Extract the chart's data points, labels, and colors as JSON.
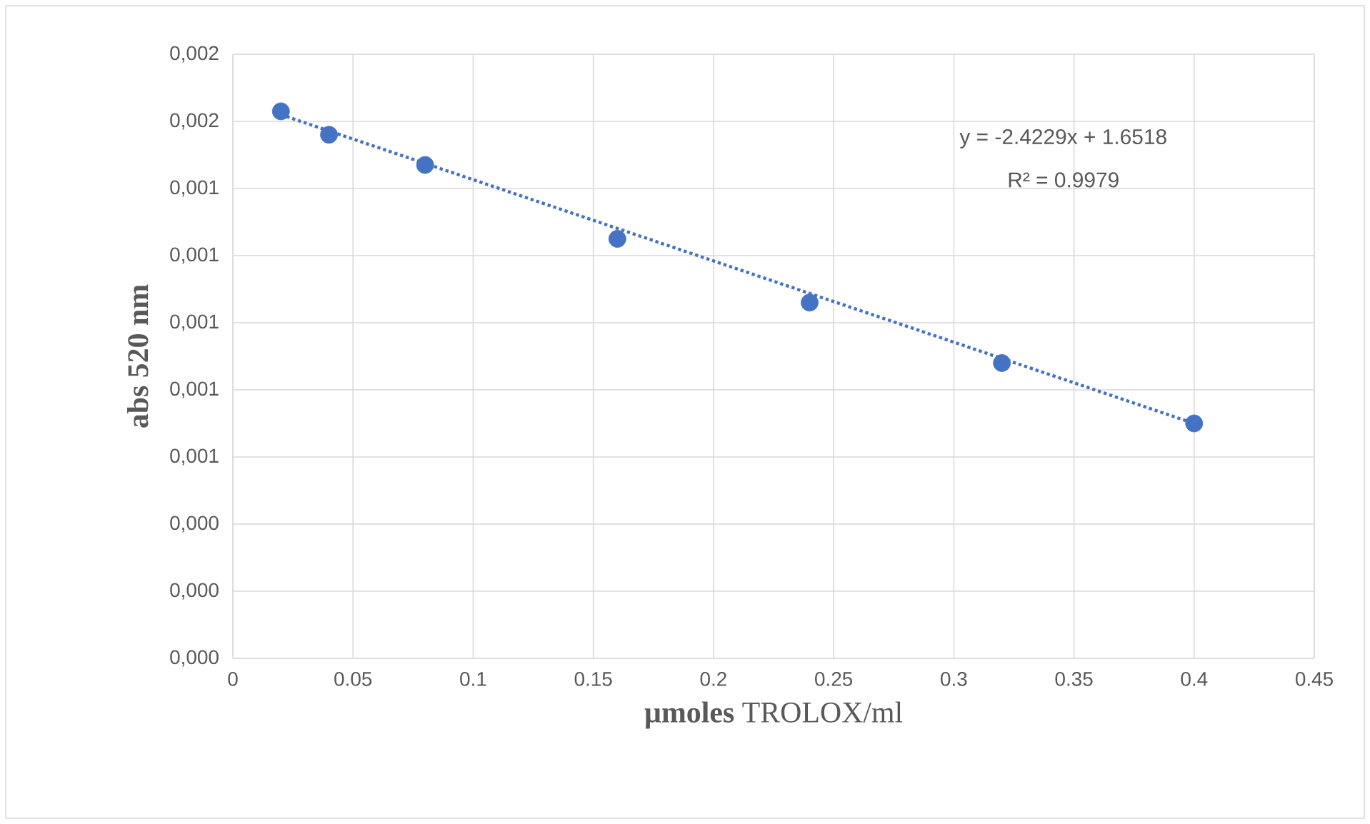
{
  "chart_data": {
    "type": "scatter",
    "xlabel": "**µmoles** TROLOX/ml",
    "ylabel": "abs 520 nm",
    "annotations": [
      "y = -2.4229x + 1.6518",
      "R² = 0.9979"
    ],
    "series": [
      {
        "color": "#4472c4",
        "x": [
          0.02,
          0.04,
          0.08,
          0.16,
          0.24,
          0.32,
          0.4
        ],
        "values": [
          0.00163,
          0.00156,
          0.00147,
          0.00125,
          0.00106,
          0.00088,
          0.0007
        ]
      },
      {
        "type": "line",
        "color": "#4472c4",
        "line_style": "dotted",
        "marker": "none",
        "x": [
          0.02,
          0.4
        ],
        "values": [
          0.00162,
          0.0007
        ]
      }
    ],
    "xlim": [
      0,
      0.45
    ],
    "xticks": [
      0,
      0.05,
      0.1,
      0.15,
      0.2,
      0.25,
      0.3,
      0.35,
      0.4,
      0.45
    ],
    "ylim": [
      0,
      0.0018
    ],
    "yticks": [
      {
        "value": 0,
        "label": "0,000"
      },
      {
        "value": 0.0002,
        "label": "0,000"
      },
      {
        "value": 0.0004,
        "label": "0,000"
      },
      {
        "value": 0.0006,
        "label": "0,001"
      },
      {
        "value": 0.0008,
        "label": "0,001"
      },
      {
        "value": 0.001,
        "label": "0,001"
      },
      {
        "value": 0.0012,
        "label": "0,001"
      },
      {
        "value": 0.0014,
        "label": "0,001"
      },
      {
        "value": 0.0016,
        "label": "0,002"
      },
      {
        "value": 0.0018,
        "label": "0,002"
      }
    ],
    "marker": "circle",
    "grid": true
  }
}
